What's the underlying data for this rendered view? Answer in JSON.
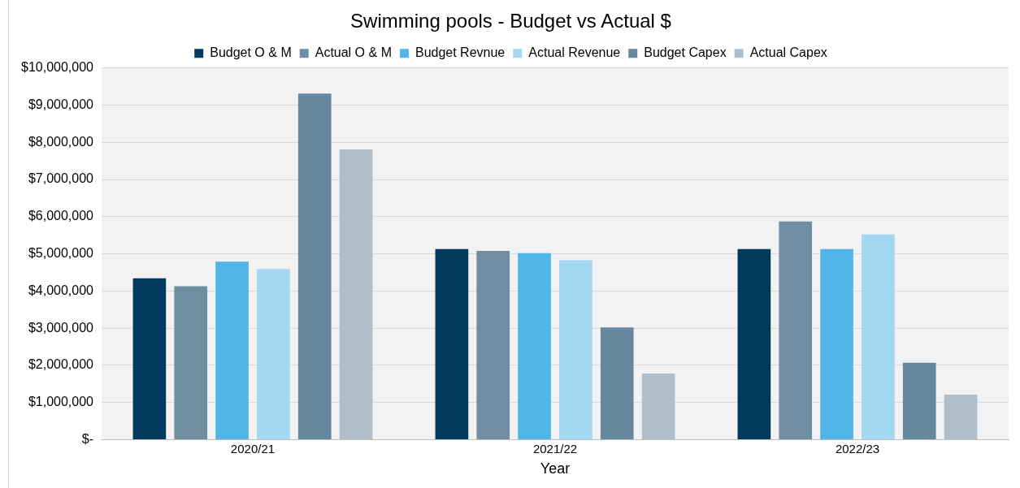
{
  "chart_data": {
    "type": "bar",
    "title": "Swimming pools - Budget vs Actual $",
    "xlabel": "Year",
    "categories": [
      "2020/21",
      "2021/22",
      "2022/23"
    ],
    "series": [
      {
        "name": "Budget O & M",
        "color": "#003a5c",
        "values": [
          4340000,
          5130000,
          5130000
        ]
      },
      {
        "name": "Actual O & M",
        "color": "#6f8ea1",
        "values": [
          4130000,
          5080000,
          5870000
        ]
      },
      {
        "name": "Budget Revnue",
        "color": "#52b5e8",
        "values": [
          4790000,
          5020000,
          5130000
        ]
      },
      {
        "name": "Actual Revenue",
        "color": "#a3d7f2",
        "values": [
          4590000,
          4830000,
          5520000
        ]
      },
      {
        "name": "Budget Capex",
        "color": "#66889e",
        "values": [
          9310000,
          3020000,
          2070000
        ]
      },
      {
        "name": "Actual Capex",
        "color": "#aebfcb",
        "values": [
          7810000,
          1780000,
          1210000
        ]
      }
    ],
    "ylim": [
      0,
      10000000
    ],
    "yticks": [
      {
        "value": 0,
        "label": "$-"
      },
      {
        "value": 1000000,
        "label": "$1,000,000"
      },
      {
        "value": 2000000,
        "label": "$2,000,000"
      },
      {
        "value": 3000000,
        "label": "$3,000,000"
      },
      {
        "value": 4000000,
        "label": "$4,000,000"
      },
      {
        "value": 5000000,
        "label": "$5,000,000"
      },
      {
        "value": 6000000,
        "label": "$6,000,000"
      },
      {
        "value": 7000000,
        "label": "$7,000,000"
      },
      {
        "value": 8000000,
        "label": "$8,000,000"
      },
      {
        "value": 9000000,
        "label": "$9,000,000"
      },
      {
        "value": 10000000,
        "label": "$10,000,000"
      }
    ],
    "grid": "y",
    "legend": "top"
  }
}
